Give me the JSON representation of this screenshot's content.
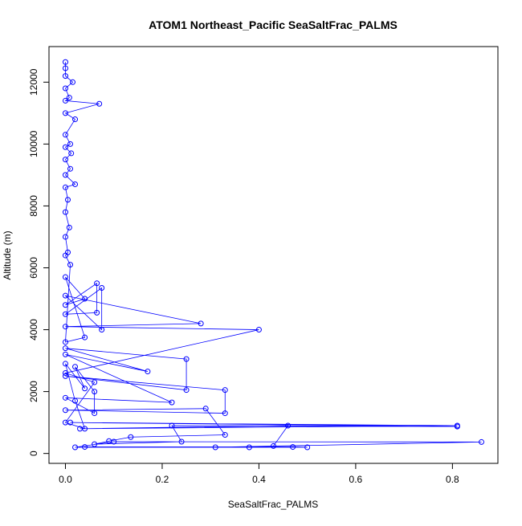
{
  "chart_data": {
    "type": "line",
    "title": "ATOM1 Northeast_Pacific SeaSaltFrac_PALMS",
    "xlabel": "SeaSaltFrac_PALMS",
    "ylabel": "Altitude (m)",
    "color": "#0000ff",
    "markers": true,
    "x": [
      0.04,
      0.47,
      0.5,
      0.31,
      0.86,
      0.1,
      0.02,
      0.38,
      0.43,
      0.46,
      0.03,
      0.81,
      0.01,
      0.81,
      0.22,
      0.24,
      0.06,
      0.09,
      0.135,
      0.33,
      0.29,
      0.0,
      0.33,
      0.33,
      0.0,
      0.25,
      0.25,
      0.0,
      0.17,
      0.0,
      0.22,
      0.0,
      0.06,
      0.06,
      0.02,
      0.04,
      0.0,
      0.02,
      0.04,
      0.0,
      0.06,
      0.0,
      0.4,
      0.0,
      0.28,
      0.0,
      0.075,
      0.075,
      0.0,
      0.065,
      0.065,
      0.0,
      0.04,
      0.0,
      0.04,
      0.0,
      0.01,
      0.0,
      0.005,
      0.0,
      0.008,
      0.0,
      0.005,
      0.0,
      0.02,
      0.0,
      0.01,
      0.0,
      0.012,
      0.0,
      0.01,
      0.0,
      0.02,
      0.0,
      0.07,
      0.0,
      0.008,
      0.0,
      0.015,
      0.0,
      0.0,
      0.0
    ],
    "values": [
      210,
      210,
      200,
      200,
      370,
      380,
      200,
      200,
      240,
      900,
      800,
      900,
      1000,
      870,
      900,
      380,
      300,
      400,
      530,
      600,
      1450,
      1400,
      1300,
      2050,
      2500,
      2050,
      3050,
      3400,
      2650,
      3200,
      1650,
      1800,
      1300,
      2000,
      2800,
      2100,
      2900,
      1700,
      800,
      1000,
      2300,
      2600,
      4000,
      4100,
      4200,
      5100,
      4000,
      5350,
      4500,
      4550,
      5500,
      4800,
      5000,
      5700,
      3750,
      3600,
      6100,
      6400,
      6500,
      7000,
      7300,
      7800,
      8200,
      8600,
      8700,
      9000,
      9200,
      9500,
      9700,
      9900,
      10000,
      10300,
      10800,
      11000,
      11300,
      11400,
      11500,
      11800,
      12000,
      12200,
      12450,
      12650
    ],
    "xlim": [
      -0.034,
      0.894
    ],
    "ylim": [
      -320,
      13150
    ],
    "xticks": [
      {
        "value": 0,
        "label": "0.0"
      },
      0.2,
      0.4,
      0.6,
      0.8
    ],
    "yticks": [
      0,
      2000,
      4000,
      6000,
      8000,
      10000,
      12000
    ]
  }
}
